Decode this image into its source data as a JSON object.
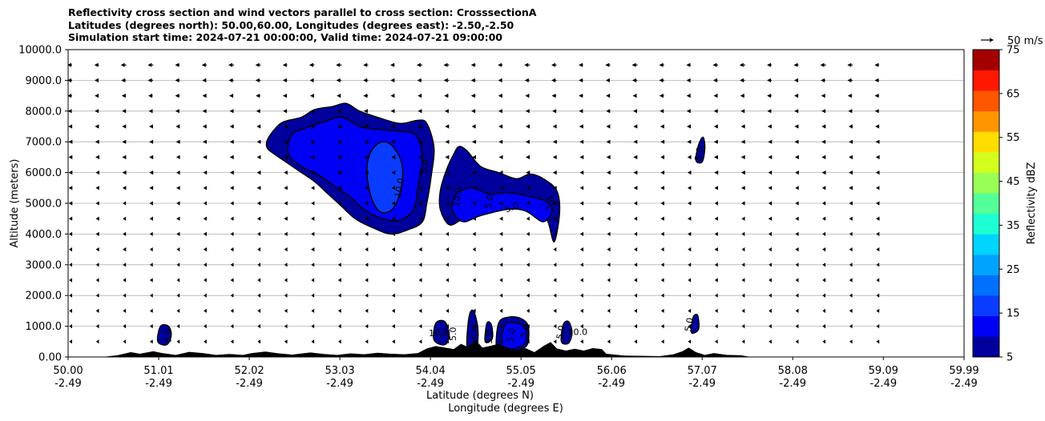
{
  "chart_data": {
    "type": "contourf_cross_section",
    "title": [
      "Reflectivity cross section and wind vectors parallel to cross section: CrosssectionA",
      "Latitudes (degrees north): 50.00,60.00, Longitudes (degrees east): -2.50,-2.50",
      "Simulation start time: 2024-07-21 00:00:00, Valid time: 2024-07-21 09:00:00"
    ],
    "xlabel": "Latitude (degrees N)",
    "xlabel2": "Longitude (degrees E)",
    "ylabel": "Altitude (meters)",
    "xlim": [
      50.0,
      59.99
    ],
    "ylim": [
      0,
      10000
    ],
    "x_ticks": [
      {
        "lat": "50.00",
        "lon": "-2.49",
        "x": 50.0
      },
      {
        "lat": "51.01",
        "lon": "-2.49",
        "x": 51.01
      },
      {
        "lat": "52.02",
        "lon": "-2.49",
        "x": 52.02
      },
      {
        "lat": "53.03",
        "lon": "-2.49",
        "x": 53.03
      },
      {
        "lat": "54.04",
        "lon": "-2.49",
        "x": 54.04
      },
      {
        "lat": "55.05",
        "lon": "-2.49",
        "x": 55.05
      },
      {
        "lat": "56.06",
        "lon": "-2.49",
        "x": 56.06
      },
      {
        "lat": "57.07",
        "lon": "-2.49",
        "x": 57.07
      },
      {
        "lat": "58.08",
        "lon": "-2.49",
        "x": 58.08
      },
      {
        "lat": "59.09",
        "lon": "-2.49",
        "x": 59.09
      },
      {
        "lat": "59.99",
        "lon": "-2.49",
        "x": 59.99
      }
    ],
    "y_ticks": [
      {
        "label": "0.00",
        "v": 0
      },
      {
        "label": "1000.0",
        "v": 1000
      },
      {
        "label": "2000.0",
        "v": 2000
      },
      {
        "label": "3000.0",
        "v": 3000
      },
      {
        "label": "4000.0",
        "v": 4000
      },
      {
        "label": "5000.0",
        "v": 5000
      },
      {
        "label": "6000.0",
        "v": 6000
      },
      {
        "label": "7000.0",
        "v": 7000
      },
      {
        "label": "8000.0",
        "v": 8000
      },
      {
        "label": "9000.0",
        "v": 9000
      },
      {
        "label": "10000.0",
        "v": 10000
      }
    ],
    "grid": "horizontal",
    "colorbar": {
      "label": "Reflectivity dBZ",
      "levels": [
        5,
        10,
        15,
        20,
        25,
        30,
        35,
        40,
        45,
        50,
        55,
        60,
        65,
        70,
        75
      ],
      "tick_labels": [
        "5",
        "15",
        "25",
        "35",
        "45",
        "55",
        "65",
        "75"
      ],
      "colors": [
        "#00009c",
        "#0000f5",
        "#0a3cff",
        "#0070ff",
        "#00a4ff",
        "#00d4ff",
        "#1effd4",
        "#54ff9a",
        "#9aff54",
        "#d4ff1e",
        "#ffdd00",
        "#ff9600",
        "#ff5600",
        "#ff1800",
        "#a40000"
      ]
    },
    "wind_key": {
      "label": "50 m/s",
      "value": 50
    },
    "wind_field": {
      "x_start": 50.0,
      "x_step": 0.3,
      "n_cols": 31,
      "y_start": 500,
      "y_step": 500,
      "n_rows": 19,
      "u_by_height_ms": [
        -4,
        -4,
        -4,
        -4,
        -5,
        -5,
        -6,
        -6,
        -7,
        -7,
        -8,
        -9,
        -10,
        -11,
        -12,
        -14,
        -16,
        -18,
        -20
      ],
      "scale_unit": "m/s"
    },
    "cells": [
      {
        "name": "upper-anvil",
        "outer": [
          [
            52.22,
            7050
          ],
          [
            52.3,
            7400
          ],
          [
            52.4,
            7650
          ],
          [
            52.6,
            7800
          ],
          [
            52.75,
            8050
          ],
          [
            52.95,
            8150
          ],
          [
            53.1,
            8250
          ],
          [
            53.25,
            8000
          ],
          [
            53.45,
            7800
          ],
          [
            53.7,
            7600
          ],
          [
            53.9,
            7700
          ],
          [
            54.0,
            7600
          ],
          [
            54.08,
            6800
          ],
          [
            54.05,
            5900
          ],
          [
            54.0,
            5000
          ],
          [
            53.95,
            4400
          ],
          [
            53.8,
            4150
          ],
          [
            53.6,
            4000
          ],
          [
            53.4,
            4200
          ],
          [
            53.2,
            4500
          ],
          [
            53.05,
            4900
          ],
          [
            52.9,
            5300
          ],
          [
            52.75,
            5700
          ],
          [
            52.6,
            6000
          ],
          [
            52.45,
            6300
          ],
          [
            52.3,
            6600
          ],
          [
            52.22,
            6800
          ]
        ],
        "inner": [
          [
            52.45,
            6800
          ],
          [
            52.5,
            7250
          ],
          [
            52.65,
            7450
          ],
          [
            52.85,
            7650
          ],
          [
            53.05,
            7800
          ],
          [
            53.25,
            7500
          ],
          [
            53.45,
            7400
          ],
          [
            53.7,
            7350
          ],
          [
            53.88,
            7200
          ],
          [
            53.95,
            6500
          ],
          [
            53.9,
            5500
          ],
          [
            53.85,
            4800
          ],
          [
            53.7,
            4450
          ],
          [
            53.5,
            4500
          ],
          [
            53.3,
            4800
          ],
          [
            53.15,
            5200
          ],
          [
            53.0,
            5500
          ],
          [
            52.8,
            5900
          ],
          [
            52.6,
            6200
          ],
          [
            52.48,
            6500
          ]
        ],
        "core": [
          [
            53.33,
            6100
          ],
          [
            53.38,
            6700
          ],
          [
            53.5,
            7000
          ],
          [
            53.62,
            6850
          ],
          [
            53.72,
            6300
          ],
          [
            53.72,
            5600
          ],
          [
            53.65,
            4950
          ],
          [
            53.55,
            4700
          ],
          [
            53.45,
            4800
          ],
          [
            53.37,
            5300
          ]
        ]
      },
      {
        "name": "mid-cell",
        "outer": [
          [
            54.15,
            5400
          ],
          [
            54.22,
            6100
          ],
          [
            54.3,
            6600
          ],
          [
            54.36,
            6850
          ],
          [
            54.45,
            6700
          ],
          [
            54.6,
            6200
          ],
          [
            54.8,
            6000
          ],
          [
            55.0,
            5800
          ],
          [
            55.15,
            5950
          ],
          [
            55.3,
            5800
          ],
          [
            55.45,
            5400
          ],
          [
            55.48,
            4700
          ],
          [
            55.42,
            3750
          ],
          [
            55.35,
            4400
          ],
          [
            55.25,
            4800
          ],
          [
            55.05,
            4900
          ],
          [
            54.85,
            5000
          ],
          [
            54.6,
            4850
          ],
          [
            54.4,
            4500
          ],
          [
            54.25,
            4300
          ],
          [
            54.15,
            4800
          ]
        ],
        "inner": [
          [
            54.28,
            4800
          ],
          [
            54.33,
            5300
          ],
          [
            54.5,
            5500
          ],
          [
            54.7,
            5300
          ],
          [
            54.9,
            5350
          ],
          [
            55.1,
            5250
          ],
          [
            55.3,
            5100
          ],
          [
            55.4,
            4800
          ],
          [
            55.3,
            4400
          ],
          [
            55.1,
            4750
          ],
          [
            54.9,
            4800
          ],
          [
            54.6,
            4600
          ],
          [
            54.4,
            4400
          ]
        ]
      },
      {
        "name": "small-high-cell",
        "outer": [
          [
            57.0,
            6400
          ],
          [
            57.03,
            6900
          ],
          [
            57.08,
            7150
          ],
          [
            57.1,
            6800
          ],
          [
            57.07,
            6350
          ]
        ]
      },
      {
        "name": "low-cell-51",
        "outer": [
          [
            51.0,
            500
          ],
          [
            51.03,
            1000
          ],
          [
            51.12,
            1000
          ],
          [
            51.15,
            700
          ],
          [
            51.1,
            400
          ]
        ]
      },
      {
        "name": "low-cell-54a",
        "outer": [
          [
            54.08,
            550
          ],
          [
            54.1,
            1100
          ],
          [
            54.2,
            1150
          ],
          [
            54.25,
            700
          ],
          [
            54.2,
            400
          ]
        ]
      },
      {
        "name": "low-cell-54b",
        "outer": [
          [
            54.45,
            300
          ],
          [
            54.47,
            1300
          ],
          [
            54.52,
            1500
          ],
          [
            54.57,
            900
          ],
          [
            54.55,
            250
          ]
        ]
      },
      {
        "name": "low-cell-54c",
        "outer": [
          [
            54.65,
            500
          ],
          [
            54.67,
            1100
          ],
          [
            54.72,
            1050
          ],
          [
            54.73,
            600
          ]
        ]
      },
      {
        "name": "low-cell-55a",
        "outer": [
          [
            54.78,
            200
          ],
          [
            54.8,
            1100
          ],
          [
            54.92,
            1300
          ],
          [
            55.05,
            1250
          ],
          [
            55.13,
            1000
          ],
          [
            55.12,
            400
          ],
          [
            55.0,
            200
          ],
          [
            54.9,
            100
          ]
        ],
        "inner": [
          [
            54.85,
            300
          ],
          [
            54.87,
            1050
          ],
          [
            55.0,
            1100
          ],
          [
            55.1,
            950
          ],
          [
            55.08,
            400
          ]
        ]
      },
      {
        "name": "low-cell-55b",
        "outer": [
          [
            55.5,
            500
          ],
          [
            55.52,
            1050
          ],
          [
            55.58,
            1150
          ],
          [
            55.62,
            800
          ],
          [
            55.58,
            450
          ]
        ]
      },
      {
        "name": "low-cell-57",
        "outer": [
          [
            56.95,
            800
          ],
          [
            56.97,
            1300
          ],
          [
            57.02,
            1350
          ],
          [
            57.03,
            900
          ]
        ]
      }
    ],
    "contour_labels": [
      {
        "text": "5.0",
        "x": 51.12,
        "y": 700,
        "angle": -90
      },
      {
        "text": "10.0",
        "x": 54.13,
        "y": 750,
        "angle": 0
      },
      {
        "text": "5.0",
        "x": 54.3,
        "y": 750,
        "angle": -90
      },
      {
        "text": "5.0",
        "x": 54.55,
        "y": 800,
        "angle": -90
      },
      {
        "text": "5.0",
        "x": 54.7,
        "y": 650,
        "angle": -90
      },
      {
        "text": "5.0",
        "x": 54.95,
        "y": 700,
        "angle": -80
      },
      {
        "text": "5.0",
        "x": 55.1,
        "y": 850,
        "angle": -80
      },
      {
        "text": "5.0",
        "x": 55.5,
        "y": 800,
        "angle": -80
      },
      {
        "text": "10.0",
        "x": 55.68,
        "y": 800,
        "angle": 0
      },
      {
        "text": "5.0",
        "x": 56.93,
        "y": 1050,
        "angle": -80
      },
      {
        "text": "5.0",
        "x": 57.04,
        "y": 6600,
        "angle": -80
      },
      {
        "text": "5.0",
        "x": 53.98,
        "y": 6200,
        "angle": -80
      },
      {
        "text": "10.0",
        "x": 53.7,
        "y": 5500,
        "angle": -80
      },
      {
        "text": "10.0",
        "x": 54.35,
        "y": 5200,
        "angle": -80
      },
      {
        "text": "5.0",
        "x": 54.7,
        "y": 5050,
        "angle": -80
      },
      {
        "text": "5.0",
        "x": 54.95,
        "y": 4850,
        "angle": -20
      },
      {
        "text": "5.0",
        "x": 55.38,
        "y": 5000,
        "angle": -80
      }
    ],
    "terrain": [
      [
        50.0,
        0
      ],
      [
        50.4,
        0
      ],
      [
        50.55,
        50
      ],
      [
        50.7,
        150
      ],
      [
        50.8,
        100
      ],
      [
        50.95,
        180
      ],
      [
        51.05,
        120
      ],
      [
        51.2,
        60
      ],
      [
        51.35,
        160
      ],
      [
        51.5,
        120
      ],
      [
        51.65,
        60
      ],
      [
        51.8,
        90
      ],
      [
        51.95,
        60
      ],
      [
        52.05,
        120
      ],
      [
        52.2,
        170
      ],
      [
        52.35,
        110
      ],
      [
        52.5,
        70
      ],
      [
        52.7,
        140
      ],
      [
        52.85,
        90
      ],
      [
        53.0,
        60
      ],
      [
        53.15,
        110
      ],
      [
        53.3,
        80
      ],
      [
        53.45,
        130
      ],
      [
        53.6,
        100
      ],
      [
        53.75,
        80
      ],
      [
        53.9,
        120
      ],
      [
        54.0,
        270
      ],
      [
        54.1,
        350
      ],
      [
        54.2,
        300
      ],
      [
        54.3,
        250
      ],
      [
        54.38,
        420
      ],
      [
        54.45,
        330
      ],
      [
        54.55,
        520
      ],
      [
        54.62,
        300
      ],
      [
        54.7,
        350
      ],
      [
        54.8,
        420
      ],
      [
        54.9,
        300
      ],
      [
        55.0,
        200
      ],
      [
        55.1,
        280
      ],
      [
        55.2,
        150
      ],
      [
        55.3,
        350
      ],
      [
        55.38,
        480
      ],
      [
        55.45,
        270
      ],
      [
        55.55,
        200
      ],
      [
        55.65,
        260
      ],
      [
        55.75,
        200
      ],
      [
        55.85,
        280
      ],
      [
        55.95,
        250
      ],
      [
        56.0,
        100
      ],
      [
        56.2,
        40
      ],
      [
        56.6,
        20
      ],
      [
        56.75,
        80
      ],
      [
        56.85,
        180
      ],
      [
        56.92,
        300
      ],
      [
        57.0,
        150
      ],
      [
        57.1,
        60
      ],
      [
        57.2,
        120
      ],
      [
        57.35,
        60
      ],
      [
        57.5,
        50
      ],
      [
        57.6,
        0
      ],
      [
        59.99,
        0
      ]
    ]
  }
}
